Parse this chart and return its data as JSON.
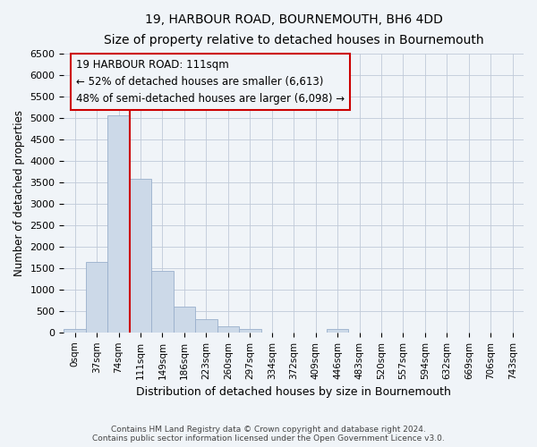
{
  "title": "19, HARBOUR ROAD, BOURNEMOUTH, BH6 4DD",
  "subtitle": "Size of property relative to detached houses in Bournemouth",
  "xlabel": "Distribution of detached houses by size in Bournemouth",
  "ylabel": "Number of detached properties",
  "footer_line1": "Contains HM Land Registry data © Crown copyright and database right 2024.",
  "footer_line2": "Contains public sector information licensed under the Open Government Licence v3.0.",
  "bar_labels": [
    "0sqm",
    "37sqm",
    "74sqm",
    "111sqm",
    "149sqm",
    "186sqm",
    "223sqm",
    "260sqm",
    "297sqm",
    "334sqm",
    "372sqm",
    "409sqm",
    "446sqm",
    "483sqm",
    "520sqm",
    "557sqm",
    "594sqm",
    "632sqm",
    "669sqm",
    "706sqm",
    "743sqm"
  ],
  "bar_values": [
    75,
    1650,
    5050,
    3575,
    1425,
    600,
    300,
    150,
    75,
    0,
    0,
    0,
    75,
    0,
    0,
    0,
    0,
    0,
    0,
    0,
    0
  ],
  "bar_color": "#ccd9e8",
  "bar_edgecolor": "#9ab0cc",
  "ylim": [
    0,
    6500
  ],
  "yticks": [
    0,
    500,
    1000,
    1500,
    2000,
    2500,
    3000,
    3500,
    4000,
    4500,
    5000,
    5500,
    6000,
    6500
  ],
  "vline_bin": 3,
  "vline_color": "#cc0000",
  "annotation_line1": "19 HARBOUR ROAD: 111sqm",
  "annotation_line2": "← 52% of detached houses are smaller (6,613)",
  "annotation_line3": "48% of semi-detached houses are larger (6,098) →",
  "bg_color": "#f0f4f8",
  "grid_color": "#c0cad8"
}
